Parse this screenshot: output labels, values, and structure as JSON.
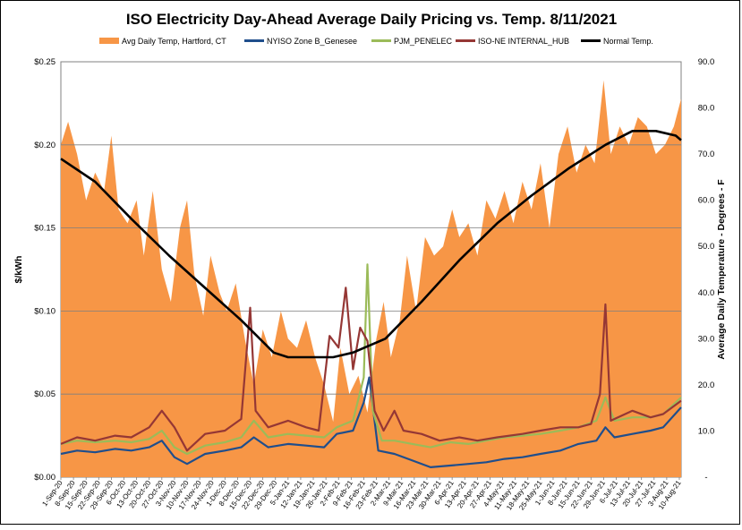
{
  "chart_data": {
    "type": "line",
    "title": "ISO Electricity Day-Ahead Average Daily Pricing vs. Temp. 8/11/2021",
    "ylabel": "$/kWh",
    "y2label": "Average Daily Temperature - Degrees - F",
    "ylim": [
      0,
      0.25
    ],
    "y2lim": [
      0,
      90
    ],
    "y_ticks": [
      "$0.00",
      "$0.05",
      "$0.10",
      "$0.15",
      "$0.20",
      "$0.25"
    ],
    "y_tick_values": [
      0,
      0.05,
      0.1,
      0.15,
      0.2,
      0.25
    ],
    "y2_ticks": [
      "-",
      "10.0",
      "20.0",
      "30.0",
      "40.0",
      "50.0",
      "60.0",
      "70.0",
      "80.0",
      "90.0"
    ],
    "y2_tick_values": [
      0,
      10,
      20,
      30,
      40,
      50,
      60,
      70,
      80,
      90
    ],
    "grid": "horizontal",
    "legend_position": "top",
    "x_start": "2020-09-01",
    "x_end": "2021-08-11",
    "x_tick_labels": [
      "1-Sep-20",
      "8-Sep-20",
      "15-Sep-20",
      "22-Sep-20",
      "29-Sep-20",
      "6-Oct-20",
      "13-Oct-20",
      "20-Oct-20",
      "27-Oct-20",
      "3-Nov-20",
      "10-Nov-20",
      "17-Nov-20",
      "24-Nov-20",
      "1-Dec-20",
      "8-Dec-20",
      "15-Dec-20",
      "22-Dec-20",
      "29-Dec-20",
      "5-Jan-21",
      "12-Jan-21",
      "19-Jan-21",
      "26-Jan-21",
      "2-Feb-21",
      "9-Feb-21",
      "16-Feb-21",
      "23-Feb-21",
      "2-Mar-21",
      "9-Mar-21",
      "16-Mar-21",
      "23-Mar-21",
      "30-Mar-21",
      "6-Apr-21",
      "13-Apr-21",
      "20-Apr-21",
      "27-Apr-21",
      "4-May-21",
      "11-May-21",
      "18-May-21",
      "25-May-21",
      "1-Jun-21",
      "8-Jun-21",
      "15-Jun-21",
      "22-Jun-21",
      "29-Jun-21",
      "6-Jul-21",
      "13-Jul-21",
      "20-Jul-21",
      "27-Jul-21",
      "3-Aug-21",
      "10-Aug-21"
    ],
    "series": [
      {
        "name": "Avg Daily Temp, Hartford, CT",
        "axis": "right",
        "kind": "area",
        "color": "#f79646",
        "points": [
          [
            "2020-09-01",
            72
          ],
          [
            "2020-09-05",
            77
          ],
          [
            "2020-09-10",
            70
          ],
          [
            "2020-09-15",
            60
          ],
          [
            "2020-09-20",
            66
          ],
          [
            "2020-09-25",
            62
          ],
          [
            "2020-09-29",
            74
          ],
          [
            "2020-10-03",
            58
          ],
          [
            "2020-10-08",
            55
          ],
          [
            "2020-10-13",
            60
          ],
          [
            "2020-10-17",
            48
          ],
          [
            "2020-10-22",
            62
          ],
          [
            "2020-10-27",
            45
          ],
          [
            "2020-11-01",
            38
          ],
          [
            "2020-11-06",
            54
          ],
          [
            "2020-11-10",
            60
          ],
          [
            "2020-11-14",
            44
          ],
          [
            "2020-11-19",
            35
          ],
          [
            "2020-11-23",
            48
          ],
          [
            "2020-11-28",
            40
          ],
          [
            "2020-12-02",
            36
          ],
          [
            "2020-12-07",
            42
          ],
          [
            "2020-12-12",
            30
          ],
          [
            "2020-12-17",
            20
          ],
          [
            "2020-12-22",
            32
          ],
          [
            "2020-12-27",
            26
          ],
          [
            "2021-01-01",
            36
          ],
          [
            "2021-01-05",
            30
          ],
          [
            "2021-01-10",
            28
          ],
          [
            "2021-01-15",
            34
          ],
          [
            "2021-01-20",
            26
          ],
          [
            "2021-01-25",
            20
          ],
          [
            "2021-01-30",
            12
          ],
          [
            "2021-02-03",
            28
          ],
          [
            "2021-02-08",
            18
          ],
          [
            "2021-02-13",
            22
          ],
          [
            "2021-02-18",
            14
          ],
          [
            "2021-02-23",
            30
          ],
          [
            "2021-02-27",
            38
          ],
          [
            "2021-03-03",
            26
          ],
          [
            "2021-03-08",
            34
          ],
          [
            "2021-03-12",
            48
          ],
          [
            "2021-03-17",
            36
          ],
          [
            "2021-03-22",
            52
          ],
          [
            "2021-03-27",
            48
          ],
          [
            "2021-04-01",
            50
          ],
          [
            "2021-04-06",
            58
          ],
          [
            "2021-04-10",
            52
          ],
          [
            "2021-04-15",
            55
          ],
          [
            "2021-04-20",
            48
          ],
          [
            "2021-04-25",
            60
          ],
          [
            "2021-04-30",
            56
          ],
          [
            "2021-05-05",
            62
          ],
          [
            "2021-05-10",
            55
          ],
          [
            "2021-05-15",
            64
          ],
          [
            "2021-05-20",
            58
          ],
          [
            "2021-05-25",
            68
          ],
          [
            "2021-05-30",
            54
          ],
          [
            "2021-06-04",
            70
          ],
          [
            "2021-06-09",
            76
          ],
          [
            "2021-06-14",
            66
          ],
          [
            "2021-06-19",
            72
          ],
          [
            "2021-06-24",
            68
          ],
          [
            "2021-06-29",
            86
          ],
          [
            "2021-07-03",
            70
          ],
          [
            "2021-07-08",
            76
          ],
          [
            "2021-07-13",
            72
          ],
          [
            "2021-07-18",
            78
          ],
          [
            "2021-07-23",
            76
          ],
          [
            "2021-07-28",
            70
          ],
          [
            "2021-08-02",
            72
          ],
          [
            "2021-08-07",
            76
          ],
          [
            "2021-08-11",
            82
          ]
        ]
      },
      {
        "name": "NYISO Zone B_Genesee",
        "axis": "left",
        "kind": "line",
        "color": "#1f4e8c",
        "points": [
          [
            "2020-09-01",
            0.014
          ],
          [
            "2020-09-10",
            0.016
          ],
          [
            "2020-09-20",
            0.015
          ],
          [
            "2020-10-01",
            0.017
          ],
          [
            "2020-10-10",
            0.016
          ],
          [
            "2020-10-20",
            0.018
          ],
          [
            "2020-10-27",
            0.022
          ],
          [
            "2020-11-03",
            0.012
          ],
          [
            "2020-11-10",
            0.008
          ],
          [
            "2020-11-20",
            0.014
          ],
          [
            "2020-12-01",
            0.016
          ],
          [
            "2020-12-10",
            0.018
          ],
          [
            "2020-12-17",
            0.024
          ],
          [
            "2020-12-25",
            0.018
          ],
          [
            "2021-01-05",
            0.02
          ],
          [
            "2021-01-15",
            0.019
          ],
          [
            "2021-01-25",
            0.018
          ],
          [
            "2021-02-01",
            0.026
          ],
          [
            "2021-02-10",
            0.028
          ],
          [
            "2021-02-16",
            0.045
          ],
          [
            "2021-02-19",
            0.06
          ],
          [
            "2021-02-24",
            0.016
          ],
          [
            "2021-03-05",
            0.014
          ],
          [
            "2021-03-15",
            0.01
          ],
          [
            "2021-03-25",
            0.006
          ],
          [
            "2021-04-05",
            0.007
          ],
          [
            "2021-04-15",
            0.008
          ],
          [
            "2021-04-25",
            0.009
          ],
          [
            "2021-05-05",
            0.011
          ],
          [
            "2021-05-15",
            0.012
          ],
          [
            "2021-05-25",
            0.014
          ],
          [
            "2021-06-05",
            0.016
          ],
          [
            "2021-06-15",
            0.02
          ],
          [
            "2021-06-25",
            0.022
          ],
          [
            "2021-06-30",
            0.03
          ],
          [
            "2021-07-05",
            0.024
          ],
          [
            "2021-07-15",
            0.026
          ],
          [
            "2021-07-25",
            0.028
          ],
          [
            "2021-08-01",
            0.03
          ],
          [
            "2021-08-11",
            0.042
          ]
        ]
      },
      {
        "name": "PJM_PENELEC",
        "axis": "left",
        "kind": "line",
        "color": "#9bbb59",
        "points": [
          [
            "2020-09-01",
            0.02
          ],
          [
            "2020-09-10",
            0.022
          ],
          [
            "2020-09-20",
            0.021
          ],
          [
            "2020-10-01",
            0.022
          ],
          [
            "2020-10-10",
            0.021
          ],
          [
            "2020-10-20",
            0.023
          ],
          [
            "2020-10-27",
            0.028
          ],
          [
            "2020-11-03",
            0.018
          ],
          [
            "2020-11-10",
            0.014
          ],
          [
            "2020-11-20",
            0.019
          ],
          [
            "2020-12-01",
            0.021
          ],
          [
            "2020-12-10",
            0.024
          ],
          [
            "2020-12-17",
            0.034
          ],
          [
            "2020-12-25",
            0.024
          ],
          [
            "2021-01-05",
            0.026
          ],
          [
            "2021-01-15",
            0.025
          ],
          [
            "2021-01-25",
            0.024
          ],
          [
            "2021-02-01",
            0.03
          ],
          [
            "2021-02-10",
            0.034
          ],
          [
            "2021-02-16",
            0.06
          ],
          [
            "2021-02-18",
            0.128
          ],
          [
            "2021-02-21",
            0.04
          ],
          [
            "2021-02-26",
            0.022
          ],
          [
            "2021-03-05",
            0.022
          ],
          [
            "2021-03-15",
            0.02
          ],
          [
            "2021-03-25",
            0.018
          ],
          [
            "2021-04-05",
            0.021
          ],
          [
            "2021-04-15",
            0.02
          ],
          [
            "2021-04-25",
            0.022
          ],
          [
            "2021-05-05",
            0.024
          ],
          [
            "2021-05-15",
            0.025
          ],
          [
            "2021-05-25",
            0.026
          ],
          [
            "2021-06-05",
            0.028
          ],
          [
            "2021-06-15",
            0.03
          ],
          [
            "2021-06-25",
            0.034
          ],
          [
            "2021-06-30",
            0.048
          ],
          [
            "2021-07-05",
            0.034
          ],
          [
            "2021-07-15",
            0.036
          ],
          [
            "2021-07-25",
            0.036
          ],
          [
            "2021-08-01",
            0.038
          ],
          [
            "2021-08-11",
            0.048
          ]
        ]
      },
      {
        "name": "ISO-NE INTERNAL_HUB",
        "axis": "left",
        "kind": "line",
        "color": "#953735",
        "points": [
          [
            "2020-09-01",
            0.02
          ],
          [
            "2020-09-10",
            0.024
          ],
          [
            "2020-09-20",
            0.022
          ],
          [
            "2020-10-01",
            0.025
          ],
          [
            "2020-10-10",
            0.024
          ],
          [
            "2020-10-20",
            0.03
          ],
          [
            "2020-10-27",
            0.04
          ],
          [
            "2020-11-03",
            0.03
          ],
          [
            "2020-11-10",
            0.016
          ],
          [
            "2020-11-20",
            0.026
          ],
          [
            "2020-12-01",
            0.028
          ],
          [
            "2020-12-10",
            0.035
          ],
          [
            "2020-12-15",
            0.102
          ],
          [
            "2020-12-18",
            0.04
          ],
          [
            "2020-12-25",
            0.03
          ],
          [
            "2021-01-05",
            0.034
          ],
          [
            "2021-01-15",
            0.03
          ],
          [
            "2021-01-22",
            0.028
          ],
          [
            "2021-01-28",
            0.085
          ],
          [
            "2021-02-02",
            0.078
          ],
          [
            "2021-02-06",
            0.114
          ],
          [
            "2021-02-10",
            0.065
          ],
          [
            "2021-02-14",
            0.09
          ],
          [
            "2021-02-18",
            0.082
          ],
          [
            "2021-02-22",
            0.04
          ],
          [
            "2021-02-27",
            0.028
          ],
          [
            "2021-03-05",
            0.04
          ],
          [
            "2021-03-10",
            0.028
          ],
          [
            "2021-03-20",
            0.026
          ],
          [
            "2021-03-30",
            0.022
          ],
          [
            "2021-04-10",
            0.024
          ],
          [
            "2021-04-20",
            0.022
          ],
          [
            "2021-05-01",
            0.024
          ],
          [
            "2021-05-15",
            0.026
          ],
          [
            "2021-05-25",
            0.028
          ],
          [
            "2021-06-05",
            0.03
          ],
          [
            "2021-06-15",
            0.03
          ],
          [
            "2021-06-22",
            0.032
          ],
          [
            "2021-06-27",
            0.05
          ],
          [
            "2021-06-30",
            0.104
          ],
          [
            "2021-07-03",
            0.034
          ],
          [
            "2021-07-15",
            0.04
          ],
          [
            "2021-07-25",
            0.036
          ],
          [
            "2021-08-01",
            0.038
          ],
          [
            "2021-08-11",
            0.046
          ]
        ]
      },
      {
        "name": "Normal Temp.",
        "axis": "right",
        "kind": "line",
        "color": "#000000",
        "points": [
          [
            "2020-09-01",
            69
          ],
          [
            "2020-09-20",
            64
          ],
          [
            "2020-10-10",
            56
          ],
          [
            "2020-10-31",
            48
          ],
          [
            "2020-11-20",
            41
          ],
          [
            "2020-12-10",
            34
          ],
          [
            "2020-12-28",
            27
          ],
          [
            "2021-01-05",
            26
          ],
          [
            "2021-01-30",
            26
          ],
          [
            "2021-02-10",
            27
          ],
          [
            "2021-02-28",
            30
          ],
          [
            "2021-03-20",
            38
          ],
          [
            "2021-04-10",
            47
          ],
          [
            "2021-05-01",
            55
          ],
          [
            "2021-05-20",
            61
          ],
          [
            "2021-06-10",
            67
          ],
          [
            "2021-06-30",
            72
          ],
          [
            "2021-07-15",
            75
          ],
          [
            "2021-07-28",
            75
          ],
          [
            "2021-08-08",
            74
          ],
          [
            "2021-08-11",
            73
          ]
        ]
      }
    ]
  }
}
